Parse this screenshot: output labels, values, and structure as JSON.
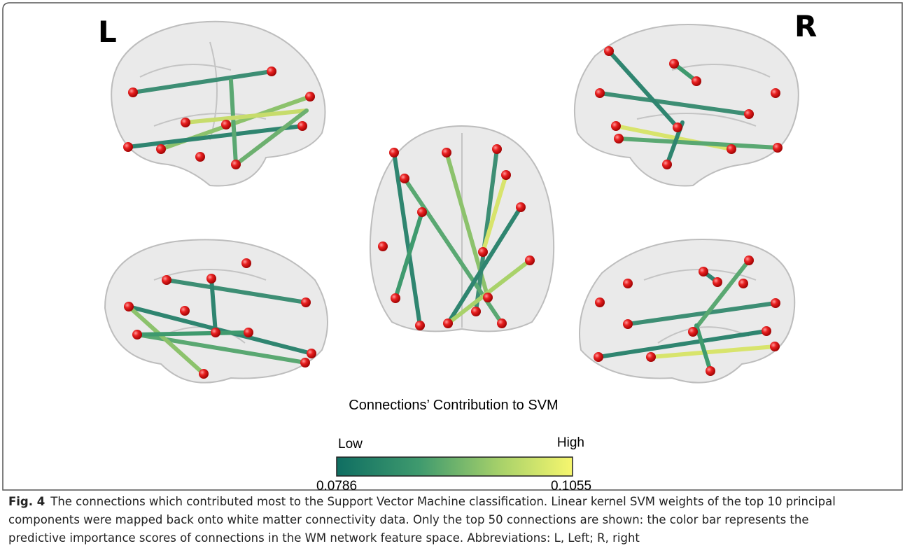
{
  "panel_labels": {
    "left": "L",
    "right": "R"
  },
  "colorbar": {
    "title": "Connections’ Contribution to SVM",
    "low_label": "Low",
    "high_label": "High",
    "min": "0.0786",
    "max": "0.1055"
  },
  "caption": {
    "label": "Fig. 4",
    "lines": [
      "The connections which contributed most to the Support Vector Machine classification. Linear kernel SVM weights of the top 10 principal",
      "components were mapped back onto white matter connectivity data. Only the top 50 connections are shown: the color bar represents the",
      "predictive importance scores of connections in the WM network feature space. Abbreviations: L, Left; R, right"
    ]
  }
}
